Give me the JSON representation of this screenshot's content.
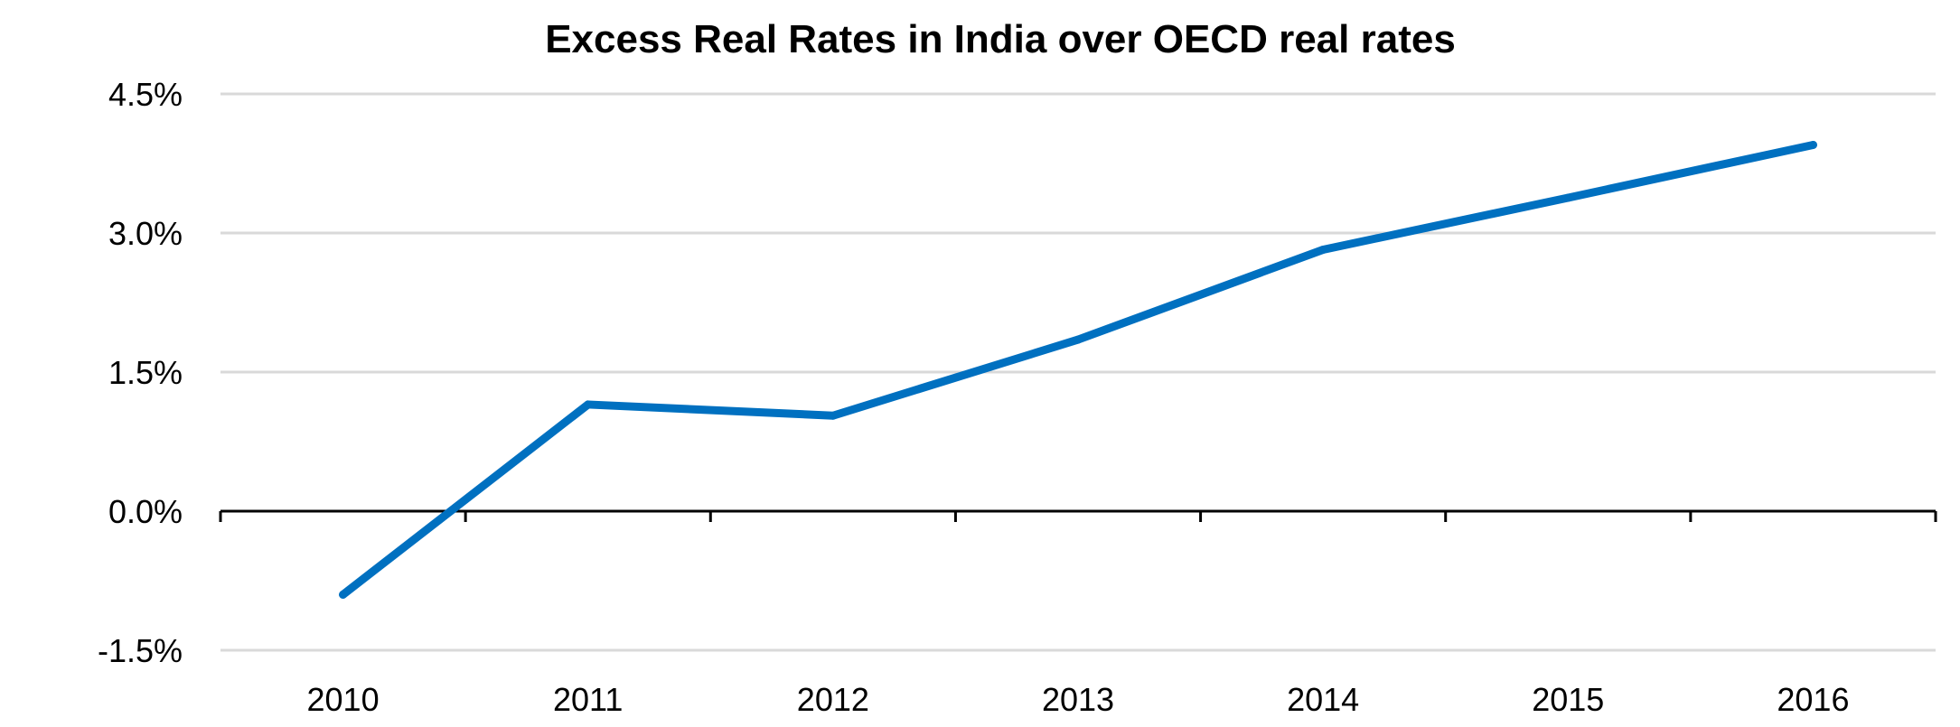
{
  "chart_data": {
    "type": "line",
    "title": "Excess Real Rates in India over OECD real rates",
    "xlabel": "",
    "ylabel": "",
    "categories": [
      "2010",
      "2011",
      "2012",
      "2013",
      "2014",
      "2015",
      "2016"
    ],
    "series": [
      {
        "values": [
          -0.9,
          1.15,
          1.03,
          1.85,
          2.82,
          3.38,
          3.95
        ]
      }
    ],
    "yticks": [
      -1.5,
      0,
      1.5,
      3,
      4.5
    ],
    "ytick_labels": [
      "-1.5%",
      "0.0%",
      "1.5%",
      "3.0%",
      "4.5%"
    ],
    "ylim": [
      -1.5,
      4.5
    ],
    "grid": true,
    "legend": "none",
    "line_color": "#0070c0"
  }
}
